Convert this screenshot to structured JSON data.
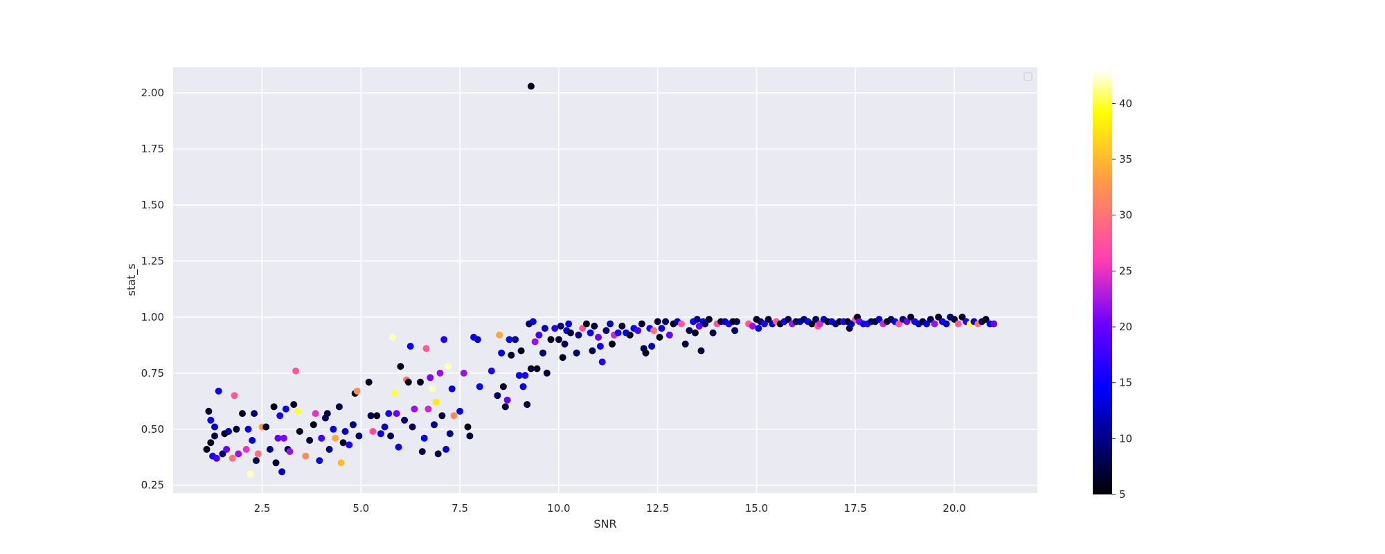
{
  "chart_data": {
    "type": "scatter",
    "xlabel": "SNR",
    "ylabel": "stat_s",
    "xlim": [
      0.25,
      22.1
    ],
    "ylim": [
      0.215,
      2.115
    ],
    "xticks": [
      2.5,
      5.0,
      7.5,
      10.0,
      12.5,
      15.0,
      17.5,
      20.0
    ],
    "xtick_labels": [
      "2.5",
      "5.0",
      "7.5",
      "10.0",
      "12.5",
      "15.0",
      "17.5",
      "20.0"
    ],
    "yticks": [
      0.25,
      0.5,
      0.75,
      1.0,
      1.25,
      1.5,
      1.75,
      2.0
    ],
    "ytick_labels": [
      "0.25",
      "0.50",
      "0.75",
      "1.00",
      "1.25",
      "1.50",
      "1.75",
      "2.00"
    ],
    "grid": true,
    "legend": "empty box, top-right",
    "background": "#eaeaf2",
    "colorbar": {
      "colormap": "gnuplot2",
      "range": [
        5,
        43
      ],
      "ticks": [
        5,
        10,
        15,
        20,
        25,
        30,
        35,
        40
      ],
      "tick_labels": [
        "5",
        "10",
        "15",
        "20",
        "25",
        "30",
        "35",
        "40"
      ]
    },
    "points": [
      [
        9.3,
        2.03,
        6
      ],
      [
        1.1,
        0.41,
        6
      ],
      [
        1.15,
        0.58,
        7
      ],
      [
        1.2,
        0.44,
        6
      ],
      [
        1.2,
        0.54,
        14
      ],
      [
        1.25,
        0.38,
        16
      ],
      [
        1.3,
        0.47,
        8
      ],
      [
        1.3,
        0.51,
        12
      ],
      [
        1.35,
        0.37,
        18
      ],
      [
        1.4,
        0.67,
        15
      ],
      [
        1.5,
        0.39,
        9
      ],
      [
        1.55,
        0.48,
        6
      ],
      [
        1.6,
        0.41,
        20
      ],
      [
        1.65,
        0.49,
        12
      ],
      [
        1.75,
        0.37,
        30
      ],
      [
        1.8,
        0.65,
        28
      ],
      [
        1.85,
        0.5,
        7
      ],
      [
        1.9,
        0.39,
        22
      ],
      [
        2.0,
        0.57,
        6
      ],
      [
        2.1,
        0.41,
        25
      ],
      [
        2.15,
        0.5,
        14
      ],
      [
        2.2,
        0.3,
        42
      ],
      [
        2.25,
        0.45,
        13
      ],
      [
        2.3,
        0.57,
        9
      ],
      [
        2.35,
        0.36,
        8
      ],
      [
        2.4,
        0.39,
        30
      ],
      [
        2.5,
        0.51,
        33
      ],
      [
        2.6,
        0.51,
        7
      ],
      [
        2.7,
        0.41,
        10
      ],
      [
        2.8,
        0.6,
        6
      ],
      [
        2.85,
        0.35,
        7
      ],
      [
        2.9,
        0.46,
        20
      ],
      [
        2.95,
        0.56,
        16
      ],
      [
        3.0,
        0.31,
        12
      ],
      [
        3.05,
        0.46,
        21
      ],
      [
        3.1,
        0.59,
        15
      ],
      [
        3.15,
        0.41,
        8
      ],
      [
        3.2,
        0.4,
        22
      ],
      [
        3.3,
        0.61,
        6
      ],
      [
        3.35,
        0.76,
        28
      ],
      [
        3.4,
        0.58,
        40
      ],
      [
        3.45,
        0.49,
        6
      ],
      [
        3.6,
        0.38,
        32
      ],
      [
        3.7,
        0.45,
        7
      ],
      [
        3.8,
        0.52,
        6
      ],
      [
        3.85,
        0.57,
        25
      ],
      [
        3.95,
        0.36,
        14
      ],
      [
        4.0,
        0.46,
        18
      ],
      [
        4.1,
        0.55,
        9
      ],
      [
        4.15,
        0.57,
        7
      ],
      [
        4.2,
        0.41,
        10
      ],
      [
        4.3,
        0.5,
        14
      ],
      [
        4.35,
        0.46,
        34
      ],
      [
        4.45,
        0.6,
        8
      ],
      [
        4.5,
        0.35,
        35
      ],
      [
        4.55,
        0.44,
        7
      ],
      [
        4.6,
        0.49,
        12
      ],
      [
        4.7,
        0.43,
        16
      ],
      [
        4.8,
        0.52,
        10
      ],
      [
        4.85,
        0.66,
        6
      ],
      [
        4.9,
        0.67,
        32
      ],
      [
        4.95,
        0.47,
        9
      ],
      [
        5.2,
        0.71,
        6
      ],
      [
        5.25,
        0.56,
        8
      ],
      [
        5.3,
        0.49,
        27
      ],
      [
        5.4,
        0.56,
        6
      ],
      [
        5.5,
        0.48,
        14
      ],
      [
        5.6,
        0.51,
        12
      ],
      [
        5.7,
        0.57,
        16
      ],
      [
        5.75,
        0.47,
        8
      ],
      [
        5.8,
        0.91,
        42
      ],
      [
        5.85,
        0.66,
        40
      ],
      [
        5.9,
        0.57,
        20
      ],
      [
        5.95,
        0.42,
        15
      ],
      [
        6.0,
        0.78,
        6
      ],
      [
        6.1,
        0.54,
        9
      ],
      [
        6.15,
        0.72,
        30
      ],
      [
        6.2,
        0.71,
        6
      ],
      [
        6.25,
        0.87,
        15
      ],
      [
        6.3,
        0.51,
        8
      ],
      [
        6.35,
        0.59,
        22
      ],
      [
        6.5,
        0.71,
        6
      ],
      [
        6.55,
        0.4,
        8
      ],
      [
        6.6,
        0.46,
        14
      ],
      [
        6.65,
        0.86,
        28
      ],
      [
        6.7,
        0.59,
        24
      ],
      [
        6.75,
        0.73,
        21
      ],
      [
        6.8,
        0.68,
        42
      ],
      [
        6.85,
        0.52,
        10
      ],
      [
        6.9,
        0.62,
        38
      ],
      [
        6.95,
        0.39,
        7
      ],
      [
        7.0,
        0.75,
        22
      ],
      [
        7.05,
        0.56,
        7
      ],
      [
        7.1,
        0.9,
        16
      ],
      [
        7.15,
        0.41,
        12
      ],
      [
        7.2,
        0.78,
        42
      ],
      [
        7.25,
        0.48,
        10
      ],
      [
        7.3,
        0.68,
        13
      ],
      [
        7.35,
        0.56,
        32
      ],
      [
        7.5,
        0.58,
        14
      ],
      [
        7.6,
        0.75,
        22
      ],
      [
        7.7,
        0.51,
        6
      ],
      [
        7.75,
        0.47,
        7
      ],
      [
        7.85,
        0.91,
        14
      ],
      [
        7.95,
        0.9,
        12
      ],
      [
        8.0,
        0.69,
        15
      ],
      [
        8.3,
        0.76,
        16
      ],
      [
        8.45,
        0.65,
        8
      ],
      [
        8.5,
        0.92,
        34
      ],
      [
        8.55,
        0.84,
        14
      ],
      [
        8.6,
        0.69,
        6
      ],
      [
        8.65,
        0.6,
        7
      ],
      [
        8.7,
        0.63,
        20
      ],
      [
        8.75,
        0.9,
        15
      ],
      [
        8.8,
        0.83,
        7
      ],
      [
        8.9,
        0.9,
        10
      ],
      [
        9.0,
        0.74,
        15
      ],
      [
        9.05,
        0.85,
        6
      ],
      [
        9.1,
        0.69,
        14
      ],
      [
        9.15,
        0.74,
        16
      ],
      [
        9.2,
        0.61,
        7
      ],
      [
        9.25,
        0.97,
        9
      ],
      [
        9.3,
        0.77,
        7
      ],
      [
        9.35,
        0.98,
        14
      ],
      [
        9.4,
        0.89,
        22
      ],
      [
        9.45,
        0.77,
        6
      ],
      [
        9.5,
        0.92,
        18
      ],
      [
        9.6,
        0.84,
        9
      ],
      [
        9.7,
        0.75,
        7
      ],
      [
        9.65,
        0.95,
        12
      ],
      [
        9.8,
        0.9,
        6
      ],
      [
        9.9,
        0.95,
        16
      ],
      [
        10.0,
        0.9,
        7
      ],
      [
        10.05,
        0.96,
        9
      ],
      [
        10.1,
        0.82,
        6
      ],
      [
        10.15,
        0.88,
        8
      ],
      [
        10.2,
        0.94,
        12
      ],
      [
        10.25,
        0.97,
        14
      ],
      [
        10.3,
        0.93,
        7
      ],
      [
        10.45,
        0.84,
        9
      ],
      [
        10.5,
        0.92,
        10
      ],
      [
        10.6,
        0.95,
        28
      ],
      [
        10.7,
        0.97,
        6
      ],
      [
        10.8,
        0.93,
        14
      ],
      [
        10.85,
        0.85,
        8
      ],
      [
        10.9,
        0.96,
        7
      ],
      [
        11.0,
        0.91,
        20
      ],
      [
        11.05,
        0.87,
        15
      ],
      [
        11.1,
        0.8,
        16
      ],
      [
        11.2,
        0.94,
        9
      ],
      [
        11.3,
        0.97,
        12
      ],
      [
        11.35,
        0.88,
        6
      ],
      [
        11.4,
        0.92,
        24
      ],
      [
        11.5,
        0.93,
        16
      ],
      [
        11.6,
        0.96,
        7
      ],
      [
        11.7,
        0.93,
        14
      ],
      [
        11.8,
        0.92,
        6
      ],
      [
        11.9,
        0.95,
        15
      ],
      [
        12.0,
        0.94,
        18
      ],
      [
        12.1,
        0.97,
        7
      ],
      [
        12.15,
        0.86,
        8
      ],
      [
        12.2,
        0.84,
        6
      ],
      [
        12.3,
        0.95,
        16
      ],
      [
        12.35,
        0.87,
        12
      ],
      [
        12.4,
        0.94,
        30
      ],
      [
        12.5,
        0.98,
        7
      ],
      [
        12.55,
        0.91,
        6
      ],
      [
        12.6,
        0.95,
        14
      ],
      [
        12.7,
        0.98,
        9
      ],
      [
        12.8,
        0.92,
        20
      ],
      [
        12.9,
        0.97,
        6
      ],
      [
        13.0,
        0.98,
        12
      ],
      [
        13.1,
        0.97,
        28
      ],
      [
        13.2,
        0.88,
        7
      ],
      [
        13.3,
        0.94,
        8
      ],
      [
        13.4,
        0.98,
        15
      ],
      [
        13.45,
        0.93,
        6
      ],
      [
        13.5,
        0.99,
        10
      ],
      [
        13.55,
        0.96,
        20
      ],
      [
        13.6,
        0.85,
        7
      ],
      [
        13.65,
        0.98,
        14
      ],
      [
        13.7,
        0.97,
        9
      ],
      [
        13.8,
        0.99,
        6
      ],
      [
        13.9,
        0.93,
        8
      ],
      [
        14.0,
        0.97,
        28
      ],
      [
        14.1,
        0.98,
        7
      ],
      [
        14.2,
        0.98,
        12
      ],
      [
        14.3,
        0.97,
        16
      ],
      [
        14.4,
        0.98,
        6
      ],
      [
        14.45,
        0.94,
        9
      ],
      [
        14.5,
        0.98,
        8
      ],
      [
        14.8,
        0.97,
        28
      ],
      [
        14.9,
        0.96,
        22
      ],
      [
        15.0,
        0.99,
        6
      ],
      [
        15.05,
        0.95,
        14
      ],
      [
        15.1,
        0.98,
        9
      ],
      [
        15.2,
        0.97,
        16
      ],
      [
        15.3,
        0.99,
        7
      ],
      [
        15.4,
        0.97,
        12
      ],
      [
        15.5,
        0.98,
        28
      ],
      [
        15.6,
        0.97,
        6
      ],
      [
        15.7,
        0.98,
        14
      ],
      [
        15.8,
        0.99,
        8
      ],
      [
        15.9,
        0.97,
        22
      ],
      [
        16.0,
        0.98,
        7
      ],
      [
        16.1,
        0.98,
        12
      ],
      [
        16.2,
        0.99,
        9
      ],
      [
        16.3,
        0.98,
        15
      ],
      [
        16.4,
        0.97,
        6
      ],
      [
        16.5,
        0.99,
        8
      ],
      [
        16.55,
        0.96,
        28
      ],
      [
        16.6,
        0.97,
        24
      ],
      [
        16.7,
        0.99,
        12
      ],
      [
        16.8,
        0.98,
        6
      ],
      [
        16.9,
        0.98,
        14
      ],
      [
        17.0,
        0.97,
        9
      ],
      [
        17.1,
        0.98,
        7
      ],
      [
        17.2,
        0.98,
        16
      ],
      [
        17.3,
        0.98,
        6
      ],
      [
        17.35,
        0.95,
        8
      ],
      [
        17.4,
        0.97,
        12
      ],
      [
        17.5,
        0.99,
        28
      ],
      [
        17.55,
        1.0,
        6
      ],
      [
        17.6,
        0.98,
        20
      ],
      [
        17.7,
        0.97,
        14
      ],
      [
        17.8,
        0.97,
        16
      ],
      [
        17.9,
        0.98,
        9
      ],
      [
        18.0,
        0.98,
        7
      ],
      [
        18.1,
        0.99,
        12
      ],
      [
        18.2,
        0.97,
        24
      ],
      [
        18.3,
        0.98,
        6
      ],
      [
        18.4,
        0.99,
        8
      ],
      [
        18.5,
        0.98,
        14
      ],
      [
        18.6,
        0.97,
        28
      ],
      [
        18.7,
        0.99,
        9
      ],
      [
        18.8,
        0.98,
        20
      ],
      [
        18.9,
        1.0,
        6
      ],
      [
        19.0,
        0.98,
        16
      ],
      [
        19.1,
        0.97,
        12
      ],
      [
        19.2,
        0.98,
        7
      ],
      [
        19.3,
        0.97,
        14
      ],
      [
        19.4,
        0.99,
        8
      ],
      [
        19.5,
        0.97,
        22
      ],
      [
        19.6,
        1.0,
        6
      ],
      [
        19.7,
        0.98,
        15
      ],
      [
        19.8,
        0.97,
        12
      ],
      [
        19.9,
        1.0,
        9
      ],
      [
        20.0,
        0.99,
        7
      ],
      [
        20.1,
        0.97,
        28
      ],
      [
        20.2,
        1.0,
        6
      ],
      [
        20.3,
        0.98,
        16
      ],
      [
        20.4,
        0.97,
        40
      ],
      [
        20.5,
        0.98,
        12
      ],
      [
        20.6,
        0.97,
        30
      ],
      [
        20.7,
        0.98,
        8
      ],
      [
        20.8,
        0.99,
        6
      ],
      [
        20.9,
        0.97,
        15
      ],
      [
        21.0,
        0.97,
        20
      ]
    ]
  }
}
